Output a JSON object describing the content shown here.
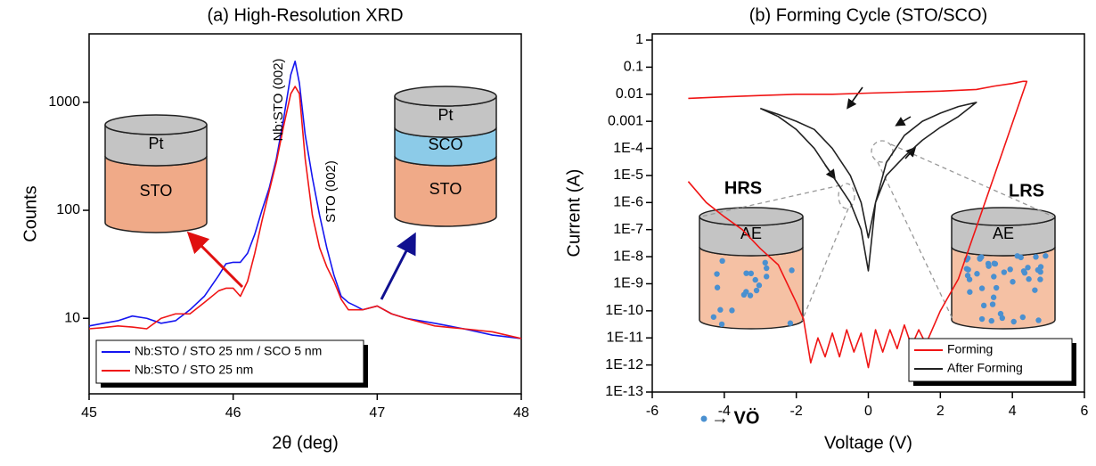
{
  "chart_data": [
    {
      "type": "line",
      "title": "(a) High-Resolution XRD",
      "x_label": "2θ (deg)",
      "y_label": "Counts",
      "y_scale": "log",
      "xlim": [
        45,
        48
      ],
      "ylim": [
        2,
        4300
      ],
      "xticks": [
        45,
        46,
        47,
        48
      ],
      "yticks": [
        10,
        100,
        1000
      ],
      "legend": "lower left",
      "annotations": [
        "Nb:STO (002)",
        "STO (002)"
      ],
      "insets": [
        [
          "Pt",
          "STO"
        ],
        [
          "Pt",
          "SCO",
          "STO"
        ]
      ],
      "series": [
        {
          "name": "Nb:STO / STO 25 nm / SCO 5 nm",
          "color": "#1515f0",
          "x": [
            45.0,
            45.1,
            45.2,
            45.3,
            45.4,
            45.5,
            45.6,
            45.7,
            45.8,
            45.9,
            45.95,
            46.0,
            46.05,
            46.1,
            46.15,
            46.2,
            46.25,
            46.3,
            46.35,
            46.4,
            46.43,
            46.46,
            46.5,
            46.55,
            46.6,
            46.65,
            46.7,
            46.75,
            46.8,
            46.85,
            46.9,
            47.0,
            47.1,
            47.2,
            47.4,
            47.6,
            47.8,
            48.0
          ],
          "values": [
            8.5,
            9,
            9.5,
            10.5,
            10,
            9,
            9.5,
            12,
            16,
            25,
            32,
            33,
            33,
            40,
            60,
            100,
            160,
            300,
            700,
            1800,
            2400,
            1500,
            500,
            200,
            90,
            45,
            25,
            16,
            14,
            13,
            12,
            13,
            11,
            10,
            9,
            8,
            7,
            6.5
          ]
        },
        {
          "name": "Nb:STO / STO 25 nm",
          "color": "#f01515",
          "x": [
            45.0,
            45.1,
            45.2,
            45.3,
            45.4,
            45.5,
            45.6,
            45.7,
            45.8,
            45.9,
            45.95,
            46.0,
            46.05,
            46.1,
            46.15,
            46.2,
            46.25,
            46.3,
            46.35,
            46.4,
            46.43,
            46.46,
            46.5,
            46.55,
            46.6,
            46.65,
            46.7,
            46.75,
            46.8,
            46.85,
            46.9,
            47.0,
            47.1,
            47.2,
            47.4,
            47.6,
            47.8,
            48.0
          ],
          "values": [
            8,
            8.2,
            8.5,
            8.3,
            8,
            10,
            11,
            11,
            14,
            18,
            19,
            19,
            16,
            22,
            40,
            80,
            150,
            280,
            600,
            1200,
            1400,
            1200,
            300,
            90,
            45,
            30,
            22,
            15,
            12,
            12,
            12,
            13,
            11,
            10,
            8.5,
            8,
            7.5,
            6.5
          ]
        }
      ]
    },
    {
      "type": "line",
      "title": "(b) Forming Cycle (STO/SCO)",
      "x_label": "Voltage (V)",
      "y_label": "Current (A)",
      "y_scale": "log",
      "xlim": [
        -6,
        6
      ],
      "ylim": [
        1e-13,
        1.7
      ],
      "xticks": [
        -6,
        -4,
        -2,
        0,
        2,
        4,
        6
      ],
      "yticks": [
        1,
        0.1,
        0.01,
        0.001,
        {
          "value": 0.0001,
          "label": "1E-4"
        },
        {
          "value": 1e-05,
          "label": "1E-5"
        },
        {
          "value": 1e-06,
          "label": "1E-6"
        },
        {
          "value": 1e-07,
          "label": "1E-7"
        },
        {
          "value": 1e-08,
          "label": "1E-8"
        },
        {
          "value": 1e-09,
          "label": "1E-9"
        },
        {
          "value": 1e-10,
          "label": "1E-10"
        },
        {
          "value": 1e-11,
          "label": "1E-11"
        },
        {
          "value": 1e-12,
          "label": "1E-12"
        },
        {
          "value": 1e-13,
          "label": "1E-13"
        }
      ],
      "legend": "lower right",
      "insets": [
        "HRS",
        "LRS",
        "AE",
        "AE"
      ],
      "vacancy_label": "→ VÖ",
      "series": [
        {
          "name": "Forming",
          "color": "#f01515",
          "x": [
            -5,
            -4,
            -3,
            -2,
            -1,
            0,
            1,
            2,
            3,
            3.5,
            4,
            4.3,
            4.4,
            3.5,
            2.5,
            2.0,
            1.6,
            1.4,
            1.2,
            1.0,
            0.8,
            0.6,
            0.4,
            0.2,
            0,
            -0.2,
            -0.4,
            -0.6,
            -0.8,
            -1.0,
            -1.2,
            -1.4,
            -1.6,
            -1.8,
            -2,
            -2.5,
            -3,
            -3.5,
            -4,
            -4.5,
            -5
          ],
          "values": [
            0.007,
            0.008,
            0.009,
            0.01,
            0.01,
            0.011,
            0.012,
            0.013,
            0.015,
            0.02,
            0.025,
            0.03,
            0.03,
            1e-05,
            1.5e-09,
            1e-10,
            6e-12,
            2e-11,
            5e-12,
            3e-11,
            4e-12,
            2e-11,
            3e-12,
            2e-11,
            8e-13,
            1.5e-11,
            3e-12,
            2e-11,
            2e-12,
            1.5e-11,
            2e-12,
            1e-11,
            1.2e-12,
            5e-11,
            2e-10,
            5e-09,
            2e-08,
            1e-07,
            3e-07,
            1e-06,
            6e-06
          ]
        },
        {
          "name": "After Forming",
          "color": "#222222",
          "x": [
            -3,
            -2.5,
            -2,
            -1.5,
            -1,
            -0.5,
            -0.2,
            0,
            0.2,
            0.5,
            1,
            1.5,
            2,
            2.5,
            3,
            2.5,
            2,
            1.5,
            1,
            0.5,
            0.2,
            0,
            -0.2,
            -0.5,
            -1,
            -1.5,
            -2,
            -2.5,
            -3
          ],
          "values": [
            0.003,
            0.0015,
            0.0005,
            0.0001,
            1e-05,
            1e-06,
            1e-07,
            3e-09,
            1e-06,
            3e-05,
            0.0003,
            0.001,
            0.002,
            0.0035,
            0.005,
            0.0015,
            0.0006,
            0.0002,
            5e-05,
            1e-05,
            1e-06,
            5e-08,
            1e-06,
            1e-05,
            0.0001,
            0.0005,
            0.001,
            0.0018,
            0.003
          ]
        }
      ]
    }
  ]
}
